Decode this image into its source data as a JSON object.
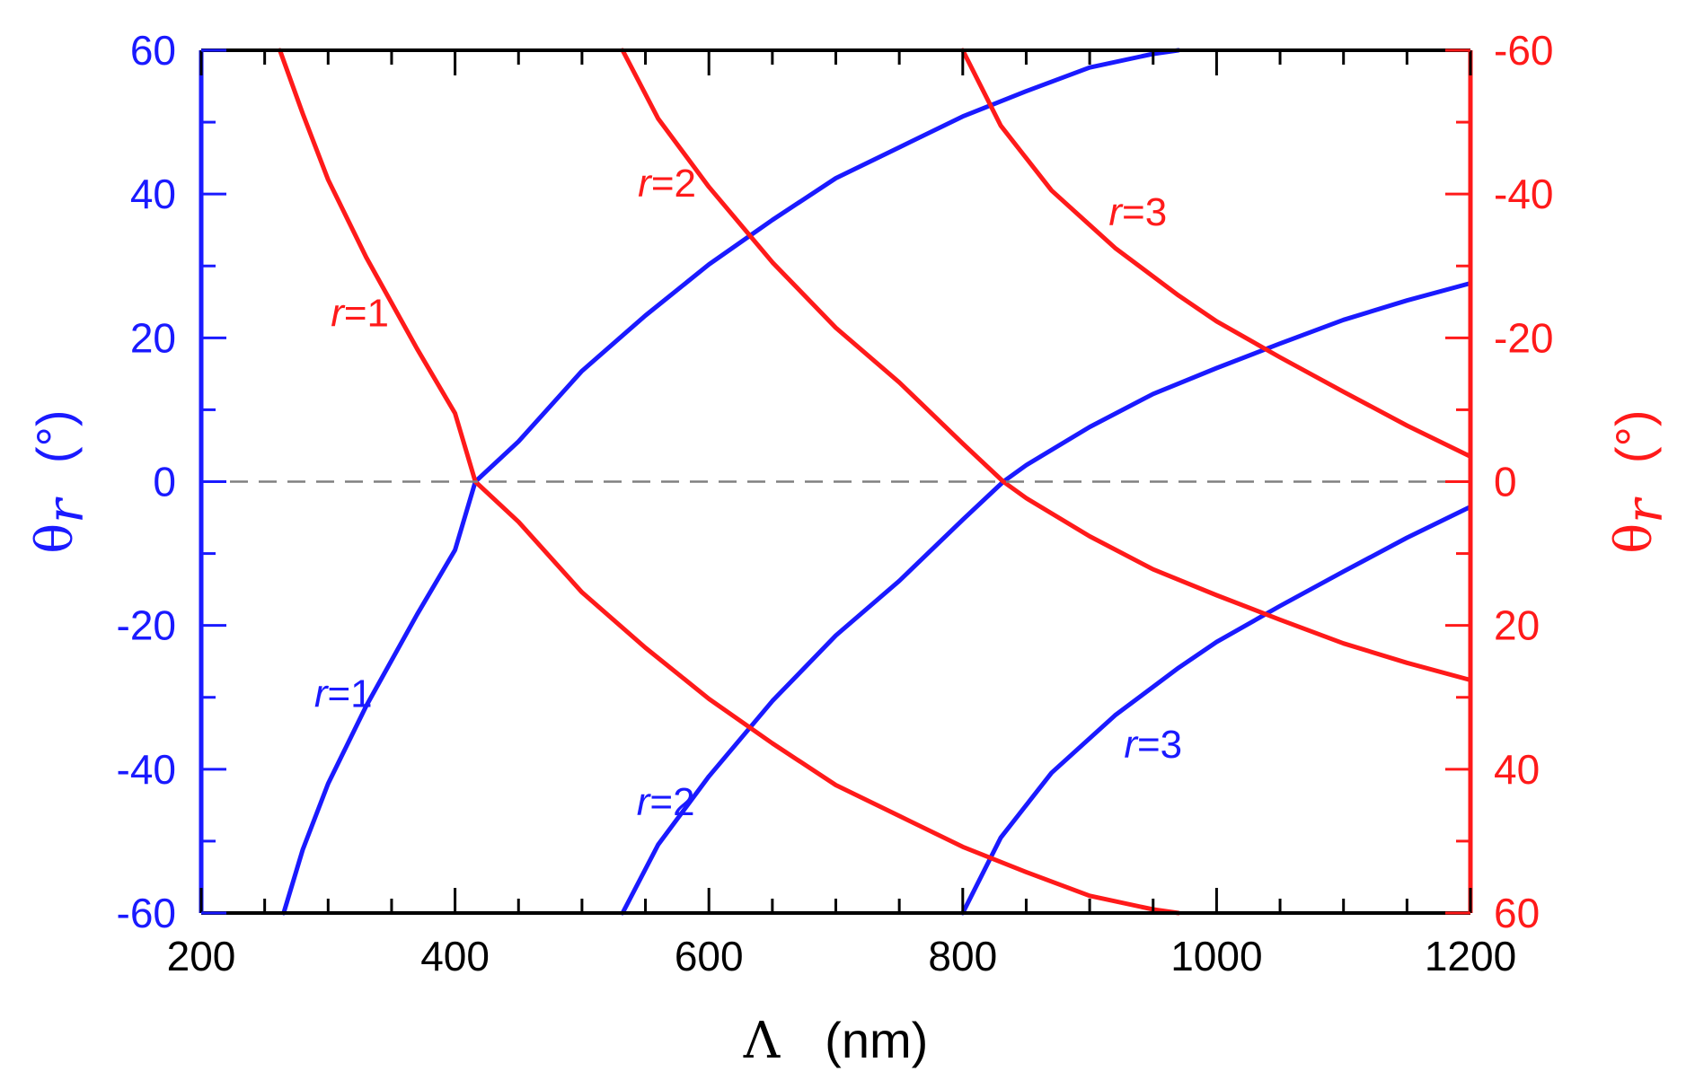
{
  "chart_data": {
    "type": "line",
    "title": "",
    "x_axis": {
      "label_symbol": "Λ",
      "label_unit": "(nm)",
      "range": [
        200,
        1200
      ],
      "ticks": [
        200,
        400,
        600,
        800,
        1000,
        1200
      ],
      "tick_labels": [
        "200",
        "400",
        "600",
        "800",
        "1000",
        "1200"
      ]
    },
    "y_axis_left": {
      "label_symbol": "θ",
      "label_sub": "r",
      "label_unit": "(°)",
      "range": [
        -60,
        60
      ],
      "ticks": [
        60,
        40,
        20,
        0,
        -20,
        -40,
        -60
      ],
      "tick_labels": [
        "60",
        "40",
        "20",
        "0",
        "-20",
        "-40",
        "-60"
      ],
      "color": "#1a1aff"
    },
    "y_axis_right": {
      "label_symbol": "θ",
      "label_sub": "r",
      "label_unit": "(°)",
      "range": [
        60,
        -60
      ],
      "ticks": [
        -60,
        -40,
        -20,
        0,
        20,
        40,
        60
      ],
      "tick_labels": [
        "-60",
        "-40",
        "-20",
        "0",
        "20",
        "40",
        "60"
      ],
      "color": "#ff1a1a"
    },
    "reference_line": {
      "y": 0,
      "style": "dashed",
      "color": "#808080"
    },
    "series": [
      {
        "name": "blue r=1",
        "label_r": "r",
        "label_rest": "=1",
        "color": "#1a1aff",
        "axis": "left",
        "x": [
          265,
          280,
          300,
          330,
          370,
          400,
          416,
          450,
          500,
          550,
          600,
          650,
          700,
          750,
          800,
          850,
          900,
          950,
          970
        ],
        "y": [
          -60,
          -51.2,
          -42.0,
          -31.2,
          -18.5,
          -9.5,
          0,
          5.6,
          15.4,
          23.1,
          30.2,
          36.4,
          42.2,
          46.5,
          50.8,
          54.3,
          57.6,
          59.5,
          60
        ]
      },
      {
        "name": "blue r=2",
        "label_r": "r",
        "label_rest": "=2",
        "color": "#1a1aff",
        "axis": "left",
        "x": [
          532,
          560,
          600,
          650,
          700,
          750,
          800,
          832,
          850,
          900,
          950,
          1000,
          1050,
          1100,
          1150,
          1200
        ],
        "y": [
          -60,
          -50.5,
          -41.0,
          -30.5,
          -21.4,
          -13.8,
          -5.3,
          0,
          2.3,
          7.6,
          12.2,
          15.8,
          19.2,
          22.5,
          25.2,
          27.6
        ]
      },
      {
        "name": "blue r=3",
        "label_r": "r",
        "label_rest": "=3",
        "color": "#1a1aff",
        "axis": "left",
        "x": [
          800,
          830,
          870,
          920,
          970,
          1000,
          1050,
          1100,
          1150,
          1200
        ],
        "y": [
          -60,
          -49.5,
          -40.5,
          -32.5,
          -25.9,
          -22.3,
          -17.3,
          -12.5,
          -7.8,
          -3.5
        ]
      },
      {
        "name": "red r=1",
        "label_r": "r",
        "label_rest": "=1",
        "color": "#ff1a1a",
        "axis": "right",
        "x": [
          262,
          280,
          300,
          330,
          370,
          400,
          416,
          450,
          500,
          550,
          600,
          650,
          700,
          750,
          800,
          850,
          900,
          950,
          970
        ],
        "y": [
          -60,
          -51.2,
          -42.0,
          -31.2,
          -18.5,
          -9.5,
          0,
          5.6,
          15.4,
          23.1,
          30.2,
          36.4,
          42.2,
          46.5,
          50.8,
          54.3,
          57.6,
          59.5,
          60
        ]
      },
      {
        "name": "red r=2",
        "label_r": "r",
        "label_rest": "=2",
        "color": "#ff1a1a",
        "axis": "right",
        "x": [
          532,
          560,
          600,
          650,
          700,
          750,
          800,
          832,
          850,
          900,
          950,
          1000,
          1050,
          1100,
          1150,
          1200
        ],
        "y": [
          -60,
          -50.5,
          -41.0,
          -30.5,
          -21.4,
          -13.8,
          -5.3,
          0,
          2.3,
          7.6,
          12.2,
          15.8,
          19.2,
          22.5,
          25.2,
          27.6
        ]
      },
      {
        "name": "red r=3",
        "label_r": "r",
        "label_rest": "=3",
        "color": "#ff1a1a",
        "axis": "right",
        "x": [
          800,
          830,
          870,
          920,
          970,
          1000,
          1050,
          1100,
          1150,
          1200
        ],
        "y": [
          -60,
          -49.5,
          -40.5,
          -32.5,
          -25.9,
          -22.3,
          -17.3,
          -12.5,
          -7.8,
          -3.5
        ]
      }
    ],
    "grid": false,
    "legend": "none"
  }
}
